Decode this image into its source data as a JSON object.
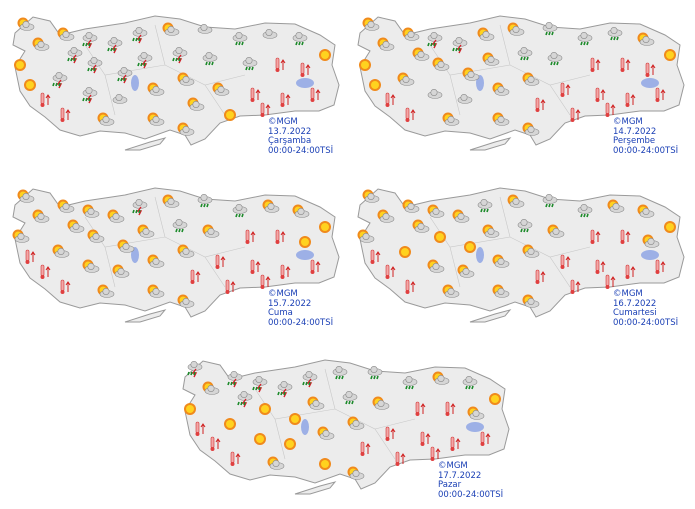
{
  "icon_legend": {
    "S": "sun-icon",
    "P": "partly-cloudy-icon",
    "C": "cloudy-icon",
    "T": "thunderstorm-icon",
    "R": "rain-icon",
    "H": "hot-thermometer-icon"
  },
  "colors": {
    "land": "#ececec",
    "border": "#9a9a9a",
    "lake": "#9db0e6",
    "label": "#1a3fb5"
  },
  "maps": [
    {
      "copyright": "©MGM",
      "date": "13.7.2022",
      "day": "Çarşamba",
      "period": "00:00-24:00TSİ",
      "icons": [
        "P",
        "P",
        "S",
        "S",
        "H",
        "H",
        "T",
        "T",
        "P",
        "T",
        "T",
        "T",
        "P",
        "T",
        "T",
        "C",
        "T",
        "T",
        "P",
        "P",
        "P",
        "T",
        "P",
        "P",
        "C",
        "R",
        "P",
        "S",
        "R",
        "R",
        "H",
        "C",
        "H",
        "H",
        "R",
        "H",
        "H",
        "S",
        "H",
        "P"
      ]
    },
    {
      "copyright": "©MGM",
      "date": "14.7.2022",
      "day": "Perşembe",
      "period": "00:00-24:00TSİ",
      "icons": [
        "P",
        "P",
        "S",
        "S",
        "H",
        "H",
        "P",
        "P",
        "P",
        "T",
        "P",
        "C",
        "P",
        "T",
        "P",
        "C",
        "P",
        "P",
        "P",
        "P",
        "P",
        "R",
        "P",
        "H",
        "R",
        "R",
        "H",
        "H",
        "R",
        "H",
        "H",
        "R",
        "H",
        "H",
        "P",
        "H",
        "H",
        "S",
        "H",
        "P"
      ]
    },
    {
      "copyright": "©MGM",
      "date": "15.7.2022",
      "day": "Cuma",
      "period": "00:00-24:00TSİ",
      "icons": [
        "P",
        "P",
        "P",
        "H",
        "H",
        "H",
        "P",
        "P",
        "P",
        "P",
        "P",
        "P",
        "P",
        "P",
        "P",
        "P",
        "T",
        "P",
        "P",
        "P",
        "P",
        "R",
        "P",
        "H",
        "R",
        "P",
        "H",
        "H",
        "R",
        "H",
        "H",
        "P",
        "H",
        "H",
        "P",
        "S",
        "H",
        "S",
        "H",
        "P"
      ]
    },
    {
      "copyright": "©MGM",
      "date": "16.7.2022",
      "day": "Cumartesi",
      "period": "00:00-24:00TSİ",
      "icons": [
        "P",
        "P",
        "P",
        "H",
        "H",
        "H",
        "S",
        "P",
        "P",
        "P",
        "S",
        "P",
        "P",
        "P",
        "S",
        "P",
        "R",
        "P",
        "P",
        "P",
        "P",
        "R",
        "P",
        "H",
        "R",
        "P",
        "H",
        "H",
        "R",
        "H",
        "H",
        "P",
        "H",
        "H",
        "P",
        "P",
        "H",
        "S",
        "H",
        "P"
      ]
    },
    {
      "copyright": "©MGM",
      "date": "17.7.2022",
      "day": "Pazar",
      "period": "00:00-24:00TSİ",
      "icons": [
        "T",
        "P",
        "S",
        "H",
        "H",
        "H",
        "S",
        "T",
        "T",
        "T",
        "S",
        "S",
        "P",
        "T",
        "S",
        "S",
        "T",
        "P",
        "P",
        "S",
        "R",
        "R",
        "P",
        "H",
        "R",
        "P",
        "H",
        "H",
        "R",
        "H",
        "H",
        "P",
        "H",
        "H",
        "R",
        "P",
        "H",
        "S",
        "H",
        "P"
      ]
    }
  ]
}
